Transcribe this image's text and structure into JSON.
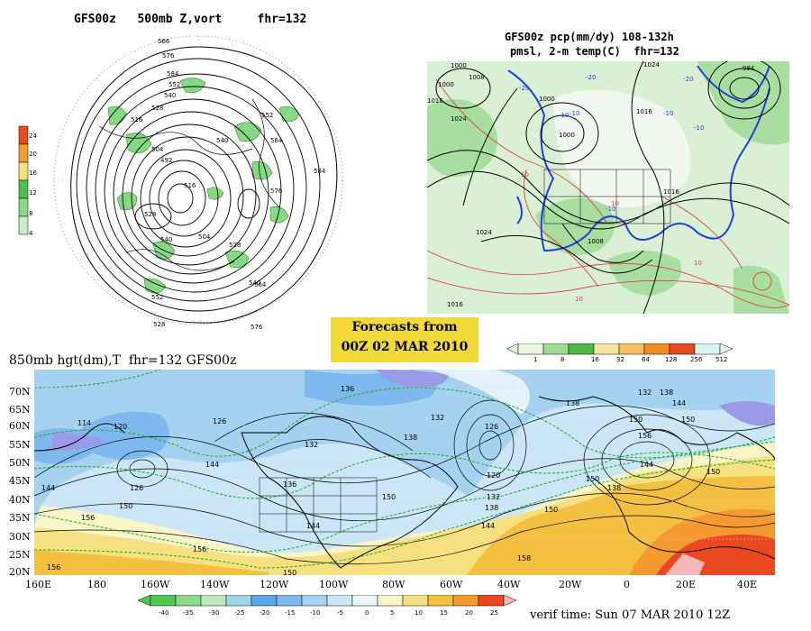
{
  "panel_500mb": {
    "title": "GFS00z   500mb Z,vort     fhr=132",
    "colorbar": {
      "labels": [
        "24",
        "20",
        "16",
        "12",
        "8",
        "4"
      ],
      "colors": [
        "#e84c1a",
        "#f0a030",
        "#f2e07a",
        "#4cc04c",
        "#86d886",
        "#c8ecc8"
      ]
    },
    "contour_labels": [
      "566",
      "576",
      "584",
      "552",
      "540",
      "528",
      "516",
      "504",
      "492",
      "516",
      "540",
      "552",
      "564",
      "576",
      "584",
      "528",
      "540",
      "552",
      "564",
      "576",
      "528",
      "504",
      "528",
      "540"
    ]
  },
  "panel_qpf": {
    "title_line1": "GFS00z pcp(mm/dy) 108-132h",
    "title_line2": "pmsl, 2-m temp(C)  fhr=132",
    "colorbar": {
      "labels": [
        "1",
        "8",
        "16",
        "32",
        "64",
        "128",
        "256",
        "512"
      ],
      "colors": [
        "#e8f8e0",
        "#9edc90",
        "#4cb84c",
        "#f4e6a0",
        "#f6c060",
        "#f08c20",
        "#e84820",
        "#d8f4f4"
      ]
    },
    "contour_labels": [
      "1000",
      "1008",
      "1016",
      "1024",
      "1000",
      "1016",
      "1024",
      "1008",
      "1000",
      "1024",
      "1016",
      "1008",
      "984",
      "1016",
      "-20",
      "-10",
      "10",
      "-10",
      "10",
      "10",
      "10",
      "-20",
      "-10",
      "10"
    ]
  },
  "forecast_box": {
    "line1": "Forecasts from",
    "line2": "00Z 02 MAR 2010",
    "color": "#f2d93a"
  },
  "panel_850mb": {
    "title": "850mb hgt(dm),T  fhr=132 GFS00z",
    "lat_labels": [
      "70N",
      "65N",
      "60N",
      "55N",
      "50N",
      "45N",
      "40N",
      "35N",
      "30N",
      "25N",
      "20N"
    ],
    "lon_labels": [
      "160E",
      "180",
      "160W",
      "140W",
      "120W",
      "100W",
      "80W",
      "60W",
      "40W",
      "20W",
      "0",
      "20E",
      "40E"
    ],
    "contour_labels": [
      "136",
      "132",
      "120",
      "114",
      "126",
      "144",
      "126",
      "150",
      "156",
      "144",
      "156",
      "132",
      "138",
      "132",
      "126",
      "138",
      "144",
      "132",
      "126",
      "138",
      "150",
      "156",
      "132",
      "138",
      "144",
      "150",
      "156",
      "150",
      "144",
      "138",
      "132",
      "138",
      "144",
      "150",
      "150",
      "158",
      "156",
      "150"
    ],
    "colorbar": {
      "labels": [
        "-40",
        "-35",
        "-30",
        "-25",
        "-20",
        "-15",
        "-10",
        "-5",
        "0",
        "5",
        "10",
        "15",
        "20",
        "25"
      ],
      "colors": [
        "#50c850",
        "#8cdc8c",
        "#bde8bd",
        "#9ad6e8",
        "#5aa6e8",
        "#7db8ee",
        "#a6d2f2",
        "#cbe6f6",
        "#e8f6fa",
        "#f8f6c8",
        "#f6e080",
        "#f4c040",
        "#f49a30",
        "#ec4820",
        "#f4b8b8"
      ]
    },
    "verif_time": "verif time: Sun 07 MAR 2010 12Z"
  }
}
